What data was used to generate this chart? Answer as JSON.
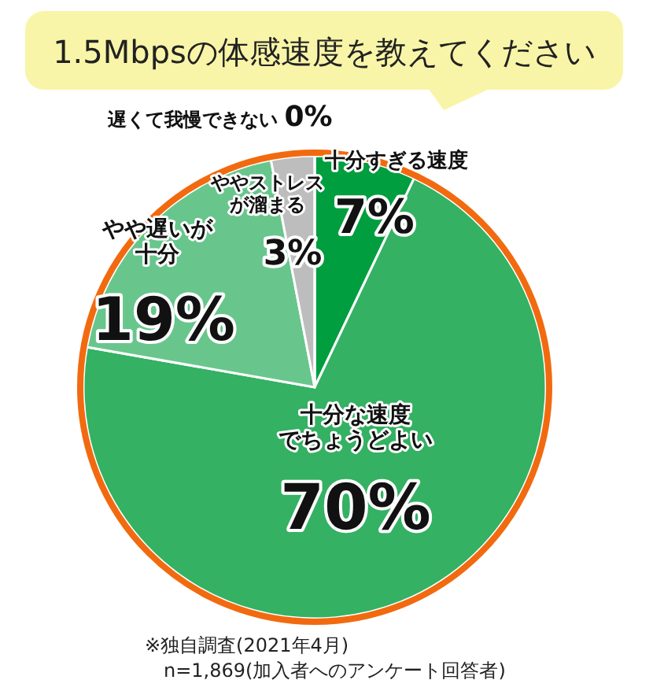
{
  "chart_data": {
    "type": "pie",
    "title": "1.5Mbpsの体感速度を教えてください",
    "categories": [
      "十分すぎる速度",
      "十分な速度でちょうどよい",
      "やや遅いが十分",
      "ややストレスが溜まる",
      "遅くて我慢できない"
    ],
    "values": [
      7,
      70,
      19,
      3,
      0
    ],
    "colors": [
      "#009e3f",
      "#34b163",
      "#68c68c",
      "#bdbdbd",
      "#7f7f7f"
    ],
    "value_labels": [
      "7%",
      "70%",
      "19%",
      "3%",
      "0%"
    ],
    "annotations": [
      "※独自調査(2021年4月)",
      "n=1,869(加入者へのアンケート回答者)"
    ]
  }
}
